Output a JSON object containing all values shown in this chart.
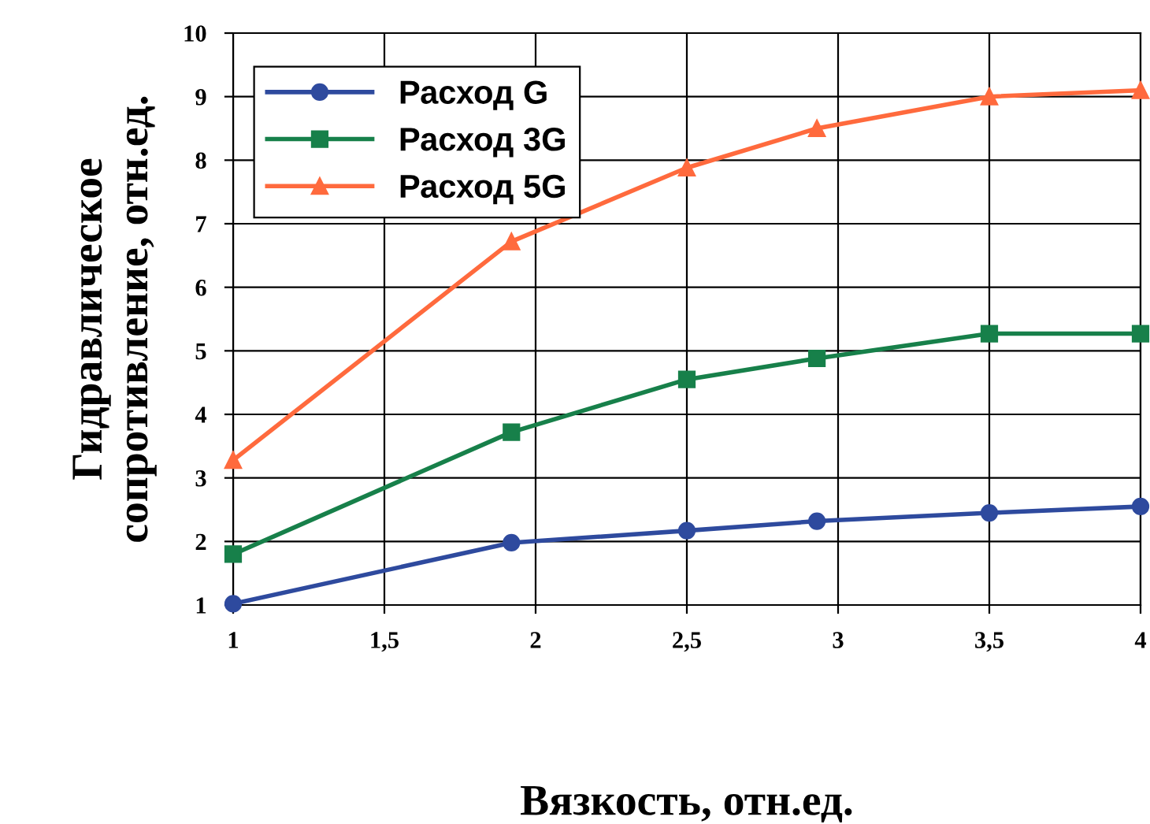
{
  "chart_data": {
    "type": "line",
    "xlabel": "Вязкость, отн.ед.",
    "ylabel": "Гидравлическое\nсопротивление, отн.ед.",
    "xlim": [
      1,
      4
    ],
    "xticks": [
      1,
      {
        "value": 1.5,
        "label": "1,5"
      },
      2,
      {
        "value": 2.5,
        "label": "2,5"
      },
      3,
      {
        "value": 3.5,
        "label": "3,5"
      },
      4
    ],
    "ylim": [
      1,
      10
    ],
    "yticks": [
      1,
      2,
      3,
      4,
      5,
      6,
      7,
      8,
      9,
      10
    ],
    "grid": true,
    "legend": "top left",
    "series": [
      {
        "name": "Расход G",
        "color": "#2e4a9e",
        "marker": "circle",
        "x": [
          1,
          1.92,
          2.5,
          2.93,
          3.5,
          4
        ],
        "values": [
          1.02,
          1.98,
          2.17,
          2.32,
          2.45,
          2.55
        ]
      },
      {
        "name": "Расход 3G",
        "color": "#17804a",
        "marker": "square",
        "x": [
          1,
          1.92,
          2.5,
          2.93,
          3.5,
          4
        ],
        "values": [
          1.8,
          3.72,
          4.55,
          4.88,
          5.27,
          5.27
        ]
      },
      {
        "name": "Расход 5G",
        "color": "#ff6a3d",
        "marker": "triangle",
        "x": [
          1,
          1.92,
          2.5,
          2.93,
          3.5,
          4
        ],
        "values": [
          3.28,
          6.72,
          7.88,
          8.5,
          9.0,
          9.1
        ]
      }
    ]
  }
}
